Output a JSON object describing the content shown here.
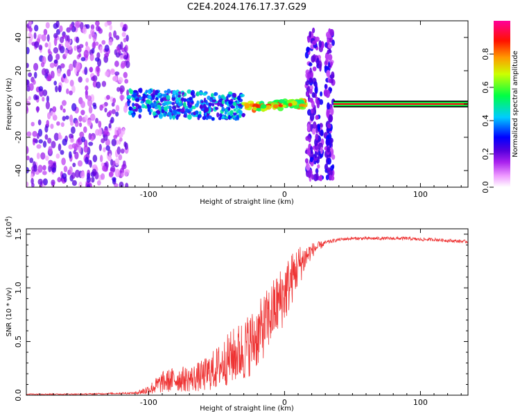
{
  "title": "C2E4.2024.176.17.37.G29",
  "chart_data": [
    {
      "type": "heatmap",
      "xlabel": "Height of straight line (km)",
      "ylabel": "Frequency (Hz)",
      "xlim": [
        -190,
        135
      ],
      "ylim": [
        -50,
        50
      ],
      "x_ticks": [
        -100,
        0,
        100
      ],
      "x_tick_labels": [
        "-100",
        "0",
        "100"
      ],
      "y_ticks": [
        -40,
        -20,
        0,
        20,
        40
      ],
      "y_tick_labels": [
        "-40",
        "-20",
        "0",
        "20",
        "40"
      ],
      "colorbar": {
        "label": "Normalized spectral amplitude",
        "range": [
          0,
          1
        ],
        "ticks": [
          0.0,
          0.2,
          0.4,
          0.6,
          0.8
        ],
        "tick_labels": [
          "0.0",
          "0.2",
          "0.4",
          "0.6",
          "0.8"
        ],
        "colormap": [
          "#ffffff",
          "#ee88ff",
          "#8800dd",
          "#0000ff",
          "#00e0ff",
          "#00ff66",
          "#ffff00",
          "#ff8800",
          "#ff0000",
          "#ff0099"
        ]
      },
      "regions": [
        {
          "x_range": [
            -190,
            -115
          ],
          "freq_range": [
            -50,
            50
          ],
          "amplitude": [
            0.05,
            0.25
          ],
          "pattern": "noise"
        },
        {
          "x_range": [
            -115,
            -30
          ],
          "freq_range": [
            -8,
            8
          ],
          "amplitude": [
            0.2,
            0.5
          ],
          "pattern": "band"
        },
        {
          "x_range": [
            -30,
            15
          ],
          "freq_range": [
            -3,
            2
          ],
          "amplitude": [
            0.5,
            0.9
          ],
          "pattern": "line"
        },
        {
          "x_range": [
            15,
            36
          ],
          "freq_range": [
            -45,
            45
          ],
          "amplitude": [
            0.1,
            0.3
          ],
          "pattern": "spikes"
        },
        {
          "x_range": [
            36,
            135
          ],
          "freq_range": [
            -0.5,
            0.5
          ],
          "amplitude": [
            0.9,
            0.9
          ],
          "pattern": "carrier"
        }
      ]
    },
    {
      "type": "line",
      "xlabel": "Height of straight line (km)",
      "ylabel": "SNR (10 * v/v)",
      "y_multiplier": "(x10^4)",
      "xlim": [
        -190,
        135
      ],
      "ylim": [
        0,
        1.55
      ],
      "x_ticks": [
        -100,
        0,
        100
      ],
      "x_tick_labels": [
        "-100",
        "0",
        "100"
      ],
      "y_ticks": [
        0.0,
        0.5,
        1.0,
        1.5
      ],
      "y_tick_labels": [
        "0.0",
        "0.5",
        "1.0",
        "1.5"
      ],
      "series": [
        {
          "color": "#ee3333",
          "x": [
            -190,
            -150,
            -110,
            -100,
            -90,
            -80,
            -70,
            -60,
            -50,
            -40,
            -30,
            -20,
            -10,
            0,
            10,
            20,
            30,
            40,
            50,
            60,
            70,
            80,
            90,
            100,
            110,
            120,
            135
          ],
          "y": [
            0.01,
            0.01,
            0.02,
            0.05,
            0.12,
            0.15,
            0.15,
            0.18,
            0.25,
            0.35,
            0.42,
            0.55,
            0.75,
            0.95,
            1.2,
            1.35,
            1.42,
            1.45,
            1.46,
            1.46,
            1.46,
            1.46,
            1.46,
            1.45,
            1.45,
            1.44,
            1.43
          ],
          "spread": [
            0.005,
            0.005,
            0.01,
            0.05,
            0.1,
            0.12,
            0.12,
            0.15,
            0.2,
            0.25,
            0.3,
            0.3,
            0.3,
            0.3,
            0.2,
            0.07,
            0.02,
            0.015,
            0.015,
            0.015,
            0.015,
            0.015,
            0.015,
            0.015,
            0.015,
            0.015,
            0.015
          ]
        }
      ]
    }
  ]
}
